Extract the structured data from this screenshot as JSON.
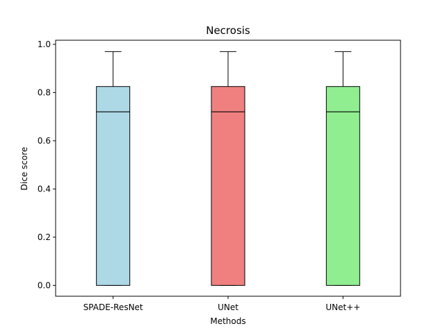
{
  "chart_data": {
    "type": "box",
    "title": "Necrosis",
    "xlabel": "Methods",
    "ylabel": "Dice score",
    "ylim": [
      -0.045,
      1.017
    ],
    "yticks": [
      0.0,
      0.2,
      0.4,
      0.6,
      0.8,
      1.0
    ],
    "ytick_labels": [
      "0.0",
      "0.2",
      "0.4",
      "0.6",
      "0.8",
      "1.0"
    ],
    "grid": false,
    "categories": [
      "SPADE-ResNet",
      "UNet",
      "UNet++"
    ],
    "boxes": [
      {
        "category": "SPADE-ResNet",
        "whisker_low": 0.0,
        "q1": 0.0,
        "median": 0.72,
        "q3": 0.825,
        "whisker_high": 0.97,
        "color": "#add8e6"
      },
      {
        "category": "UNet",
        "whisker_low": 0.0,
        "q1": 0.0,
        "median": 0.72,
        "q3": 0.825,
        "whisker_high": 0.97,
        "color": "#f08080"
      },
      {
        "category": "UNet++",
        "whisker_low": 0.0,
        "q1": 0.0,
        "median": 0.72,
        "q3": 0.825,
        "whisker_high": 0.97,
        "color": "#90ee90"
      }
    ]
  }
}
